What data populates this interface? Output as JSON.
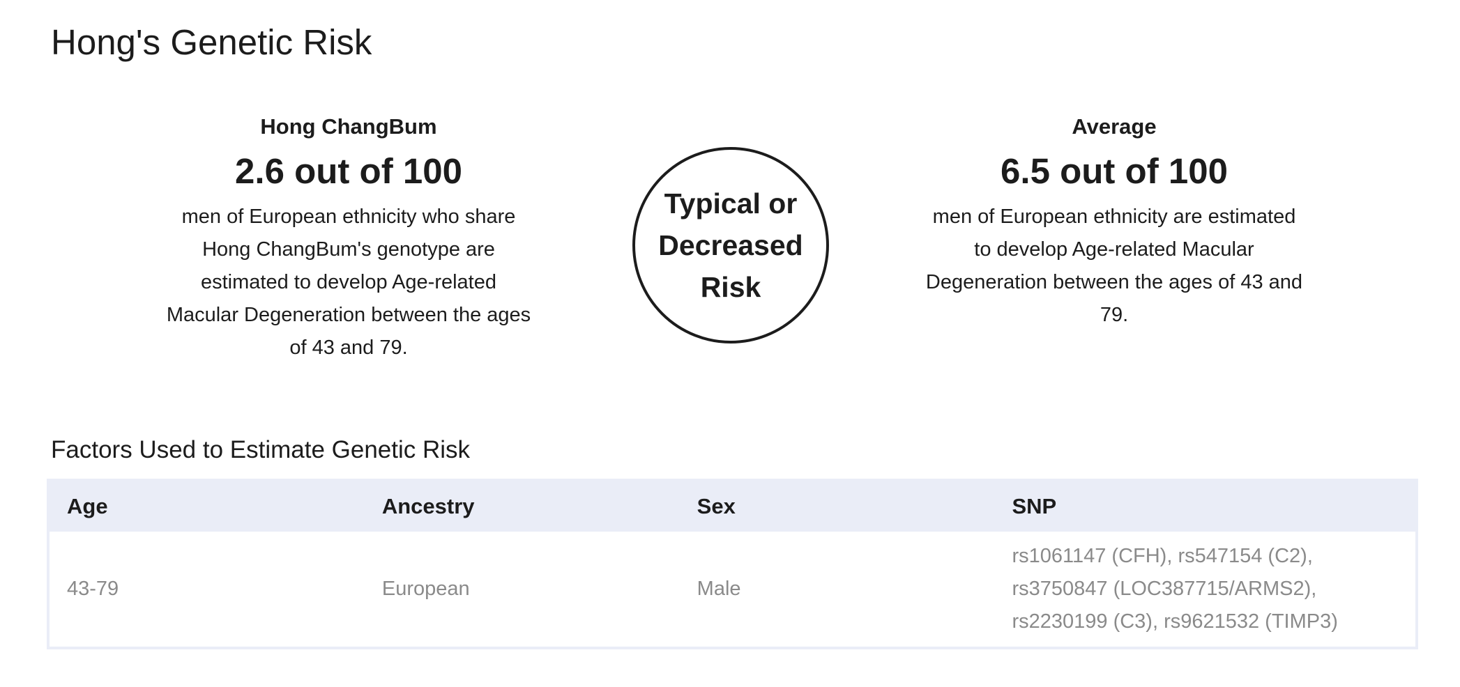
{
  "page": {
    "title": "Hong's Genetic Risk"
  },
  "user_risk": {
    "name": "Hong ChangBum",
    "score": "2.6 out of 100",
    "description": "men of European ethnicity who share Hong ChangBum's genotype are estimated to develop Age-related Macular Degeneration between the ages of 43 and 79."
  },
  "risk_level": {
    "label": "Typical or Decreased Risk"
  },
  "average_risk": {
    "name": "Average",
    "score": "6.5 out of 100",
    "description": "men of European ethnicity are estimated to develop Age-related Macular Degeneration between the ages of 43 and 79."
  },
  "factors": {
    "title": "Factors Used to Estimate Genetic Risk",
    "headers": [
      "Age",
      "Ancestry",
      "Sex",
      "SNP"
    ],
    "row": {
      "age": "43-79",
      "ancestry": "European",
      "sex": "Male",
      "snp": "rs1061147 (CFH), rs547154 (C2), rs3750847 (LOC387715/ARMS2), rs2230199 (C3), rs9621532 (TIMP3)"
    }
  },
  "colors": {
    "text": "#1c1c1c",
    "muted_text": "#8a8a8a",
    "table_header_bg": "#eaedf7"
  }
}
